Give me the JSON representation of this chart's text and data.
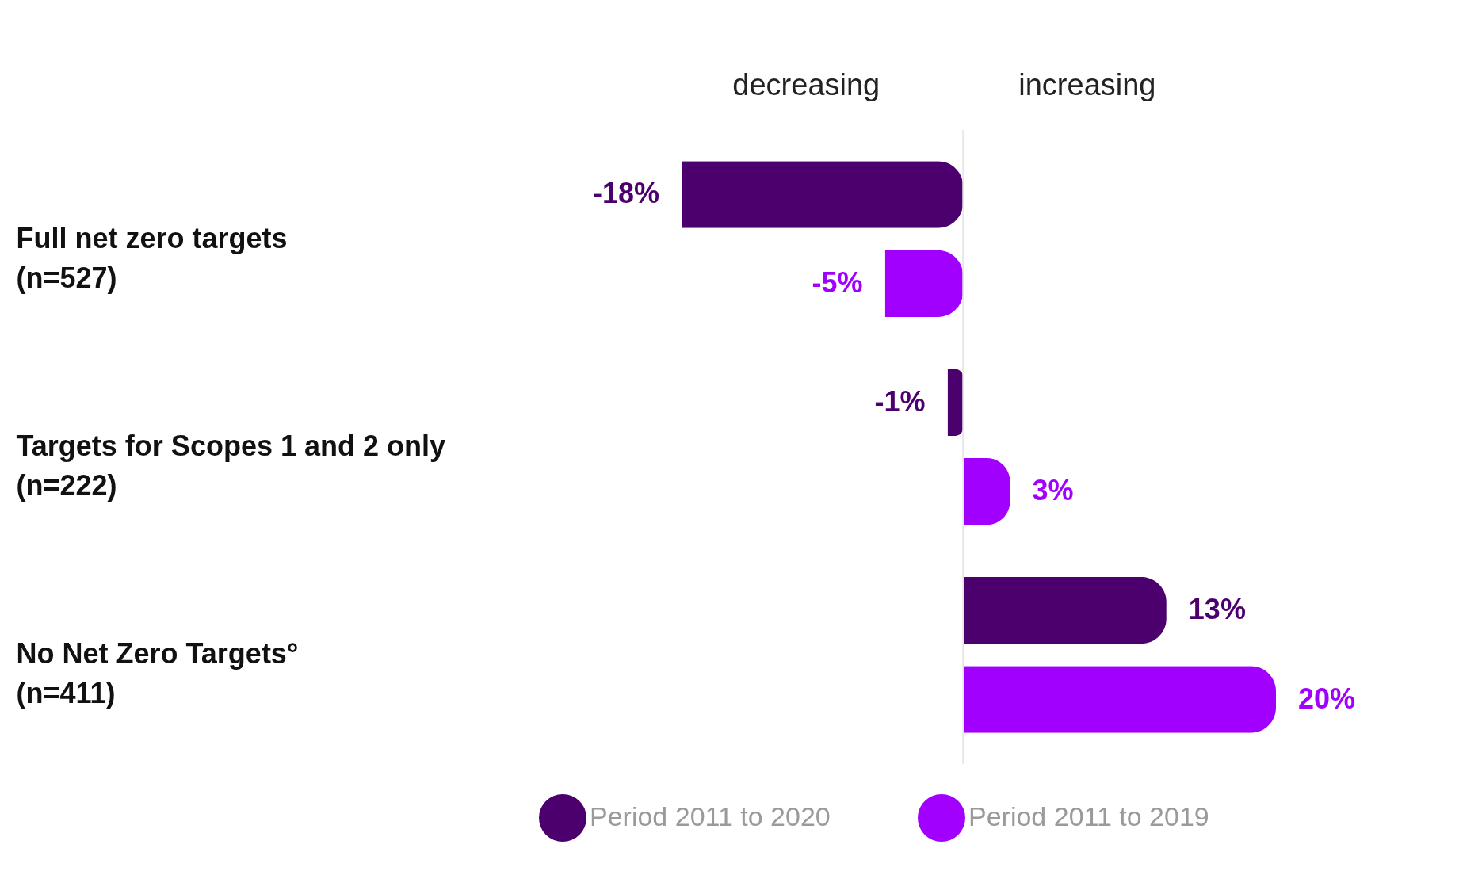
{
  "chart_data": {
    "type": "bar",
    "orientation": "horizontal",
    "categories": [
      "Full net zero targets\n(n=527)",
      "Targets for Scopes 1 and 2 only\n(n=222)",
      "No Net Zero Targets°\n(n=411)"
    ],
    "series": [
      {
        "name": "Period 2011 to 2020",
        "color": "#4b006e",
        "values": [
          -18,
          -1,
          13
        ],
        "value_labels": [
          "-18%",
          "-1%",
          "13%"
        ]
      },
      {
        "name": "Period 2011 to 2019",
        "color": "#a100ff",
        "values": [
          -5,
          3,
          20
        ],
        "value_labels": [
          "-5%",
          "3%",
          "20%"
        ]
      }
    ],
    "annotations": [
      "decreasing",
      "increasing"
    ],
    "legend": "bottom left"
  }
}
